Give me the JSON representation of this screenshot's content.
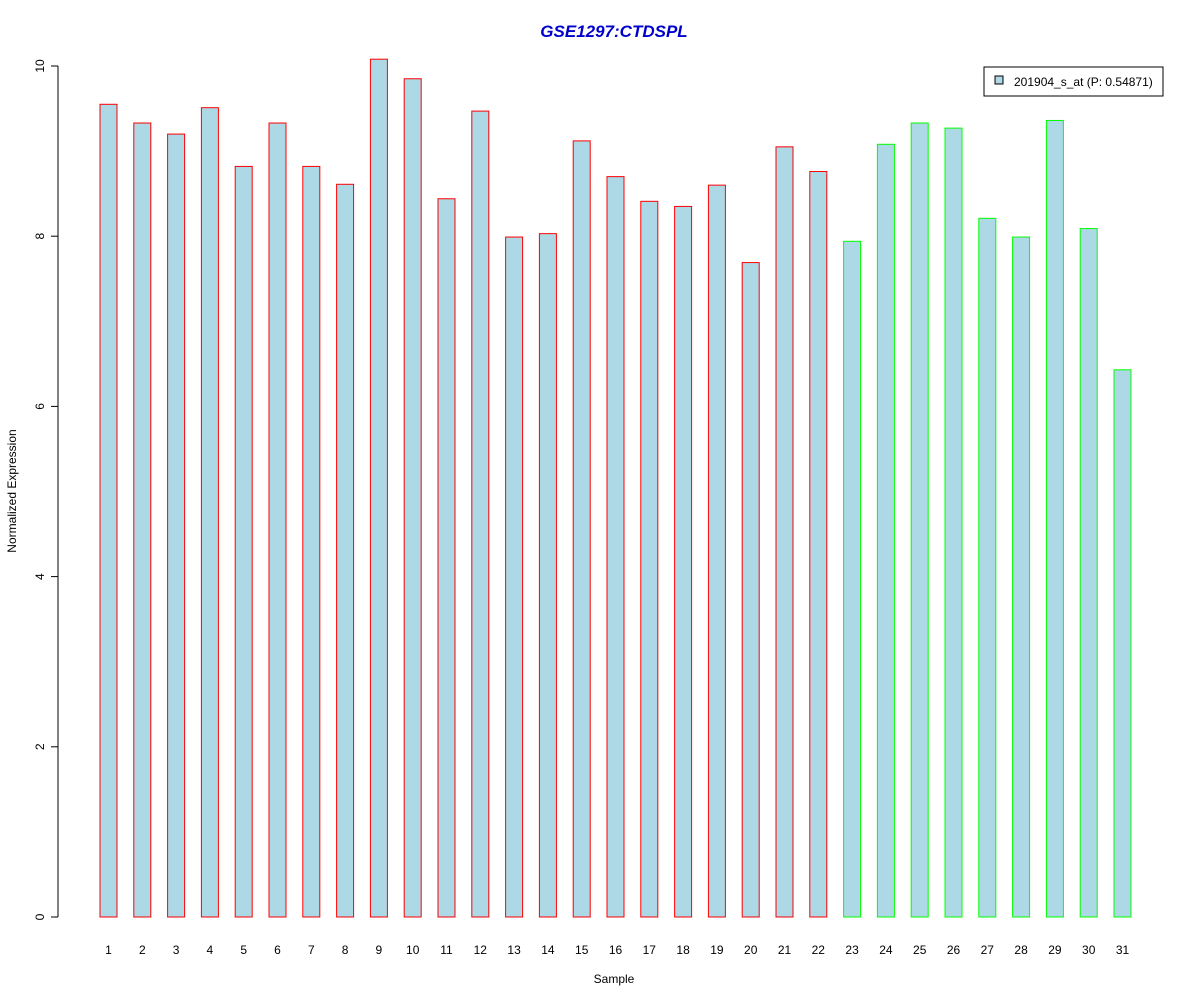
{
  "chart_data": {
    "type": "bar",
    "title": "GSE1297:CTDSPL",
    "xlabel": "Sample",
    "ylabel": "Normalized Expression",
    "ylim": [
      0,
      10
    ],
    "yticks": [
      0,
      2,
      4,
      6,
      8,
      10
    ],
    "grid": false,
    "legend_position": "top-right",
    "categories": [
      "1",
      "2",
      "3",
      "4",
      "5",
      "6",
      "7",
      "8",
      "9",
      "10",
      "11",
      "12",
      "13",
      "14",
      "15",
      "16",
      "17",
      "18",
      "19",
      "20",
      "21",
      "22",
      "23",
      "24",
      "25",
      "26",
      "27",
      "28",
      "29",
      "30",
      "31"
    ],
    "series": [
      {
        "name": "201904_s_at (P: 0.54871)",
        "values": [
          9.55,
          9.33,
          9.2,
          9.51,
          8.82,
          9.33,
          8.82,
          8.61,
          10.08,
          9.85,
          8.44,
          9.47,
          7.99,
          8.03,
          9.12,
          8.7,
          8.41,
          8.35,
          8.6,
          7.69,
          9.05,
          8.76,
          7.94,
          9.08,
          9.33,
          9.27,
          8.21,
          7.99,
          9.36,
          8.09,
          6.43
        ],
        "group": [
          "A",
          "A",
          "A",
          "A",
          "A",
          "A",
          "A",
          "A",
          "A",
          "A",
          "A",
          "A",
          "A",
          "A",
          "A",
          "A",
          "A",
          "A",
          "A",
          "A",
          "A",
          "A",
          "B",
          "B",
          "B",
          "B",
          "B",
          "B",
          "B",
          "B",
          "B"
        ]
      }
    ]
  },
  "colors": {
    "bar_fill": "#add8e6",
    "group_A_border": "#ff0000",
    "group_B_border": "#00ff00",
    "title": "#0000cd",
    "axis": "#000000",
    "background": "#ffffff"
  }
}
